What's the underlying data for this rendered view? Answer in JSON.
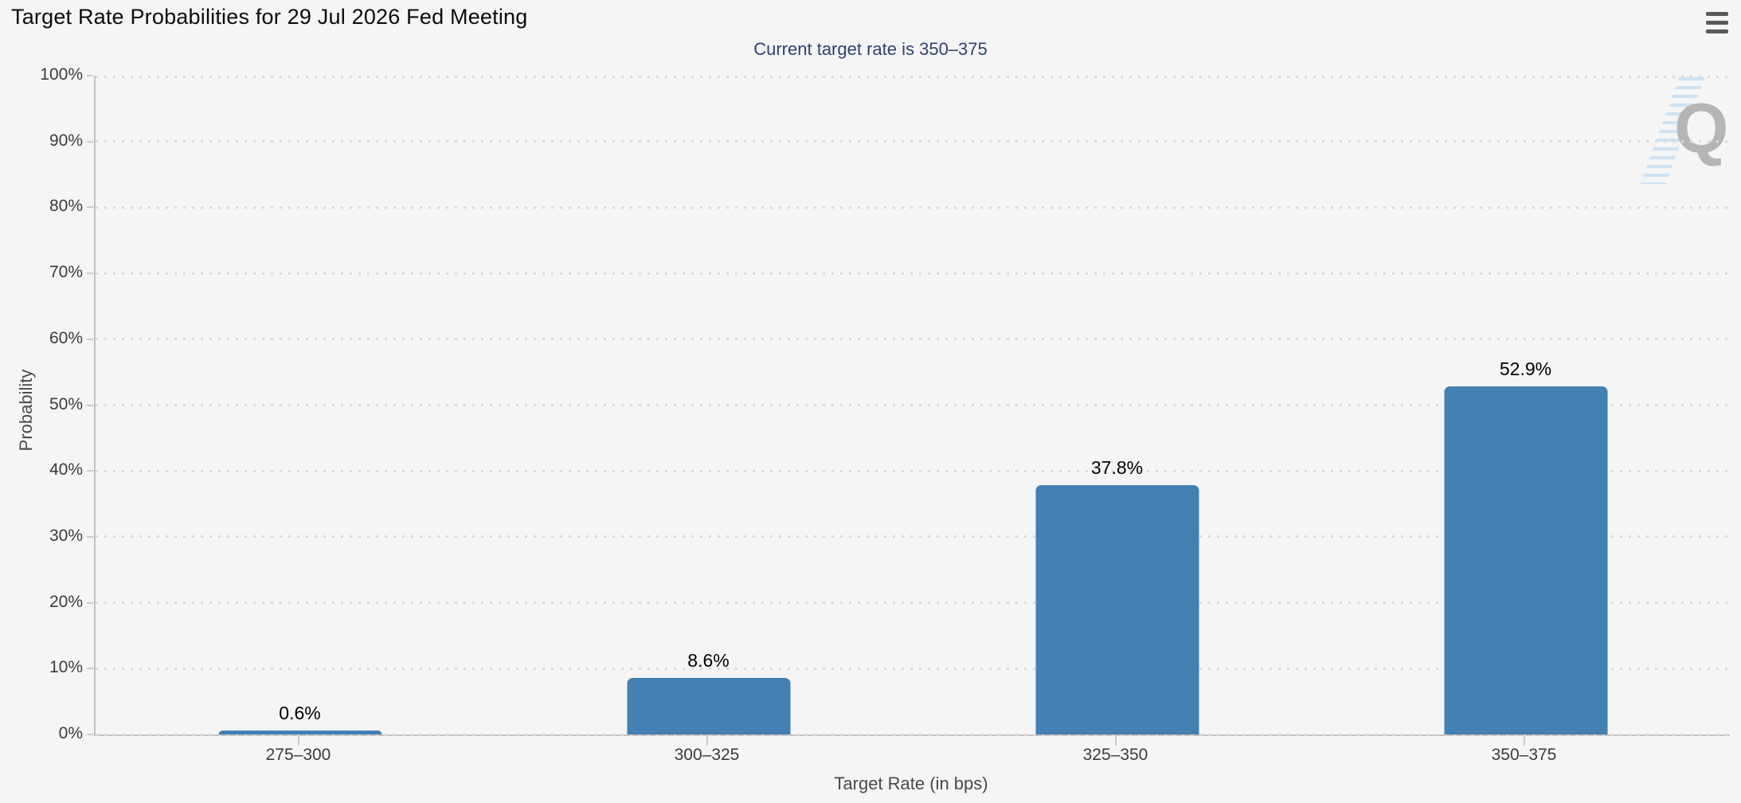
{
  "header": {
    "title": "Target Rate Probabilities for 29 Jul 2026 Fed Meeting"
  },
  "subtitle": "Current target rate is 350–375",
  "watermark": {
    "letter": "Q"
  },
  "colors": {
    "background": "#f5f5f6",
    "bar": "#4480b2",
    "subtitle_text": "#31406f",
    "axis_line": "#c2c2c2",
    "gridline_dots": "#d9d9d9",
    "tick_text": "#3b3b3b",
    "axis_title_text": "#4a4a4a",
    "menu_icon": "#58595b",
    "watermark_letter": "#b5b5b5",
    "watermark_stripes": "#cde2f4"
  },
  "chart_data": {
    "type": "bar",
    "title": "Target Rate Probabilities for 29 Jul 2026 Fed Meeting",
    "subtitle": "Current target rate is 350–375",
    "categories": [
      "275–300",
      "300–325",
      "325–350",
      "350–375"
    ],
    "values": [
      0.6,
      8.6,
      37.8,
      52.9
    ],
    "value_labels": [
      "0.6%",
      "8.6%",
      "37.8%",
      "52.9%"
    ],
    "xlabel": "Target Rate (in bps)",
    "ylabel": "Probability",
    "ylim": [
      0,
      100
    ],
    "ytick_step": 10,
    "ytick_labels": [
      "0%",
      "10%",
      "20%",
      "30%",
      "40%",
      "50%",
      "60%",
      "70%",
      "80%",
      "90%",
      "100%"
    ],
    "grid": "dotted-horizontal",
    "legend": "none",
    "bar_color": "#4480b2"
  }
}
